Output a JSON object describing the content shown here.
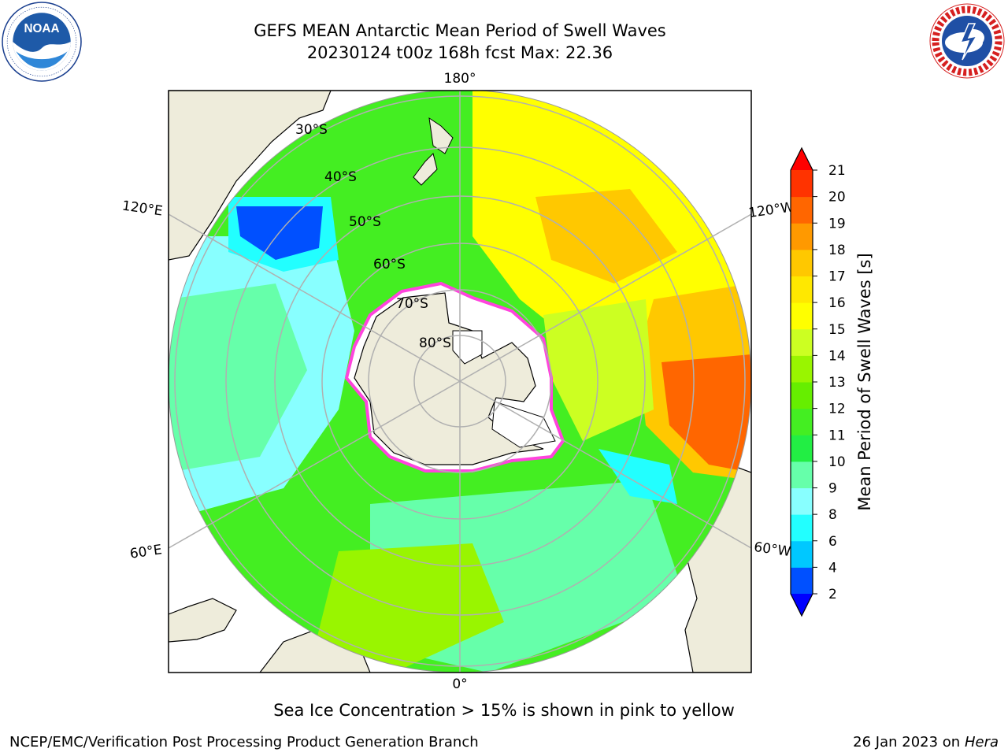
{
  "header": {
    "title_line1": "GEFS MEAN Antarctic Mean Period of Swell Waves",
    "title_line2": "20230124 t00z 168h fcst   Max: 22.36"
  },
  "logos": {
    "left": "noaa-logo",
    "right": "nws-logo"
  },
  "map": {
    "projection": "south-polar-stereographic",
    "meridian_labels": {
      "top": "180°",
      "bottom": "0°",
      "upper_left": "120°E",
      "lower_left": "60°E",
      "upper_right": "120°W",
      "lower_right": "60°W"
    },
    "parallel_labels": [
      "30°S",
      "40°S",
      "50°S",
      "60°S",
      "70°S",
      "80°S"
    ],
    "colors": {
      "land": "#eeecdb",
      "ice_edge": "#ff44dd",
      "ice_fill": "#ffffff",
      "grid": "#b0b0b0"
    }
  },
  "colorbar": {
    "label": "Mean Period of Swell Waves [s]",
    "ticks": [
      "2",
      "4",
      "6",
      "8",
      "9",
      "10",
      "11",
      "12",
      "13",
      "14",
      "15",
      "16",
      "17",
      "18",
      "19",
      "20",
      "21"
    ],
    "colors": [
      "#0050ff",
      "#00c8ff",
      "#22ffff",
      "#88ffff",
      "#66ffaa",
      "#22ee44",
      "#44ee22",
      "#66ee00",
      "#99f500",
      "#ccff22",
      "#ffff00",
      "#ffe800",
      "#ffc800",
      "#ff9900",
      "#ff6600",
      "#ff3300"
    ],
    "under_color": "#0000ff",
    "over_color": "#ff0000"
  },
  "caption": "Sea Ice Concentration > 15% is shown in pink to yellow",
  "footer": {
    "left": "NCEP/EMC/Verification Post Processing Product Generation Branch",
    "right_prefix": "26 Jan 2023 on",
    "right_machine": "Hera"
  }
}
